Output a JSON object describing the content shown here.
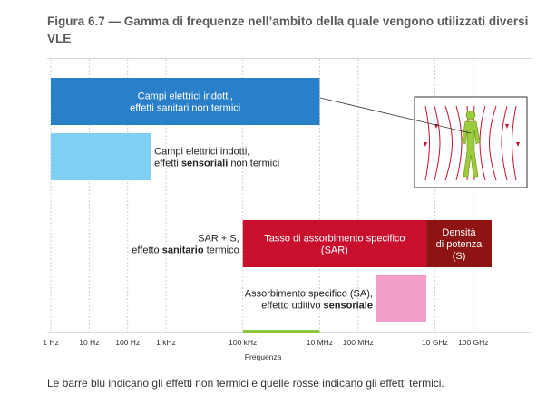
{
  "title": "Figura 6.7 — Gamma di frequenze nell’ambito della quale vengono utilizzati diversi VLE",
  "caption": "Le barre blu indicano gli effetti non termici e quelle rosse indicano gli effetti termici.",
  "chart_data": {
    "type": "bar",
    "orientation": "horizontal-ranges",
    "xlabel": "Frequenza",
    "x_scale": "log",
    "x_ticks": [
      {
        "value_hz": 1,
        "label": "1 Hz"
      },
      {
        "value_hz": 10,
        "label": "10 Hz"
      },
      {
        "value_hz": 100,
        "label": "100 Hz"
      },
      {
        "value_hz": 1000,
        "label": "1 kHz"
      },
      {
        "value_hz": 100000,
        "label": "100 kHz"
      },
      {
        "value_hz": 10000000,
        "label": "10 MHz"
      },
      {
        "value_hz": 100000000,
        "label": "100 MHz"
      },
      {
        "value_hz": 10000000000,
        "label": "10 GHz"
      },
      {
        "value_hz": 100000000000,
        "label": "100 GHz"
      }
    ],
    "grid": true,
    "highlight_range_hz": [
      100000,
      10000000
    ],
    "bars": [
      {
        "id": "campi-non-termici",
        "from_hz": 1,
        "to_hz": 10000000,
        "color": "#2a7fc9",
        "text_color": "#ffffff",
        "label_position": "inside",
        "lines": [
          [
            {
              "t": "Campi elettrici indotti,",
              "b": false
            }
          ],
          [
            {
              "t": "effetti sanitari non termici",
              "b": false
            }
          ]
        ]
      },
      {
        "id": "campi-sensoriali",
        "from_hz": 1,
        "to_hz": 400,
        "color": "#7fd0f3",
        "text_color": "#222222",
        "label_position": "right",
        "lines": [
          [
            {
              "t": "Campi elettrici indotti,",
              "b": false
            }
          ],
          [
            {
              "t": "effetti ",
              "b": false
            },
            {
              "t": "sensoriali",
              "b": true
            },
            {
              "t": " non termici",
              "b": false
            }
          ]
        ]
      },
      {
        "id": "sar",
        "from_hz": 100000,
        "to_hz": 6000000000,
        "color": "#c8102e",
        "text_color": "#ffffff",
        "label_position": "inside",
        "lines": [
          [
            {
              "t": "Tasso di assorbimento specifico",
              "b": false
            }
          ],
          [
            {
              "t": "(SAR)",
              "b": false
            }
          ]
        ]
      },
      {
        "id": "densita",
        "from_hz": 6000000000,
        "to_hz": 300000000000,
        "color": "#8e1414",
        "text_color": "#ffffff",
        "label_position": "inside",
        "lines": [
          [
            {
              "t": "Densità",
              "b": false
            }
          ],
          [
            {
              "t": "di potenza",
              "b": false
            }
          ],
          [
            {
              "t": "(S)",
              "b": false
            }
          ]
        ]
      },
      {
        "id": "sa",
        "from_hz": 300000000,
        "to_hz": 6000000000,
        "color": "#f29ec8",
        "text_color": "#222222",
        "label_position": "left",
        "lines": [
          [
            {
              "t": "Assorbimento specifico (SA),",
              "b": false
            }
          ],
          [
            {
              "t": "effetto uditivo ",
              "b": false
            },
            {
              "t": "sensoriale",
              "b": true
            }
          ]
        ]
      }
    ],
    "row_labels": [
      {
        "id": "sar-plus-s",
        "lines": [
          [
            {
              "t": "SAR + S,",
              "b": false
            }
          ],
          [
            {
              "t": "effetto ",
              "b": false
            },
            {
              "t": "sanitario",
              "b": true
            },
            {
              "t": " termico",
              "b": false
            }
          ]
        ]
      }
    ]
  },
  "figure_inset": {
    "icon": "human-body-field-lines-icon",
    "field_color": "#c8102e",
    "body_color": "#9ccb3b"
  }
}
